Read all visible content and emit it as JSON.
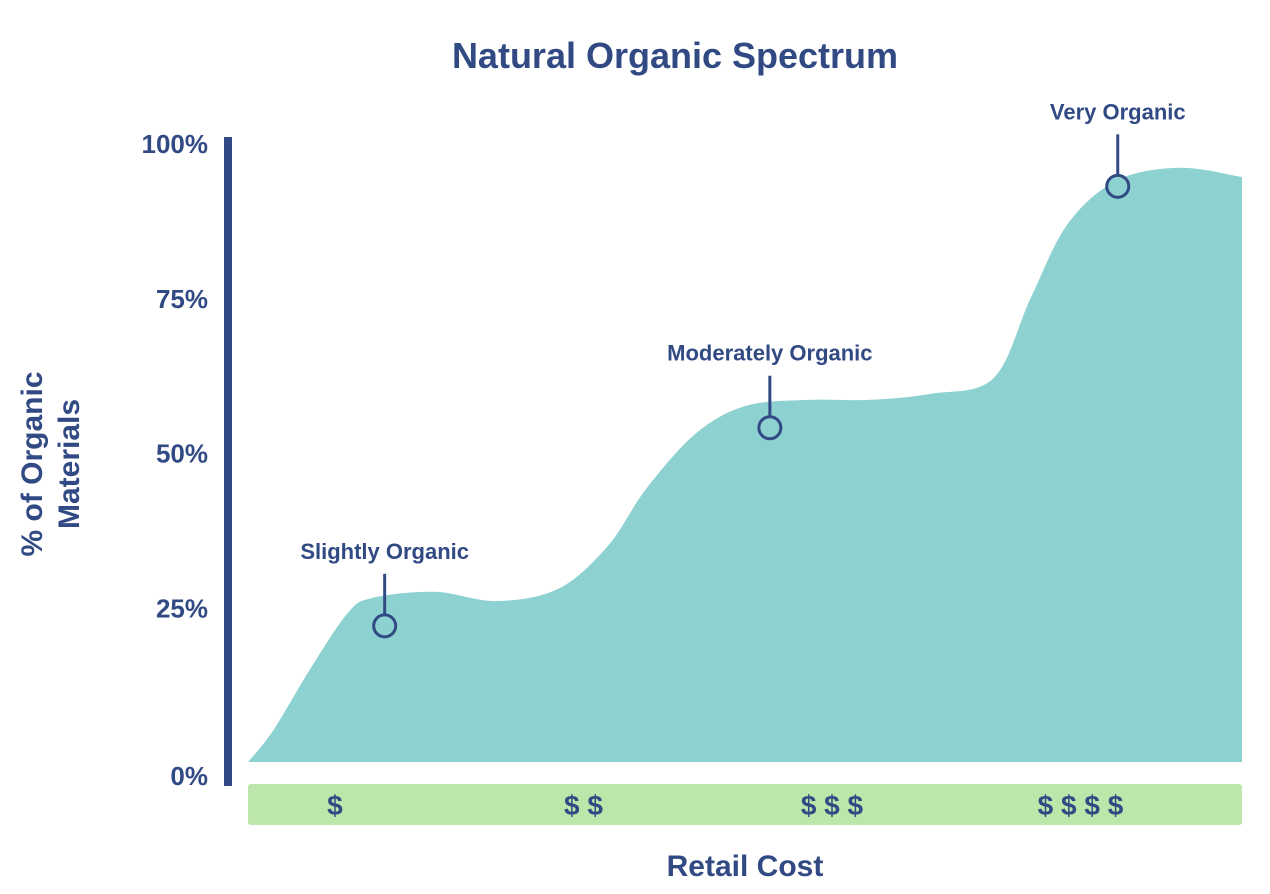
{
  "colors": {
    "text": "#324A84",
    "area": "#8DD2D1",
    "cost_band": "#BDE6AA",
    "axis": "#324A84",
    "marker_fill": "#8DD2D1"
  },
  "chart_data": {
    "type": "area",
    "title": "Natural Organic Spectrum",
    "xlabel": "Retail Cost",
    "ylabel_lines": [
      "% of Organic",
      "Materials"
    ],
    "y_ticks": [
      "0%",
      "25%",
      "50%",
      "75%",
      "100%"
    ],
    "ylim": [
      0,
      100
    ],
    "xlim": [
      0,
      4
    ],
    "x_categories": [
      "$",
      "$ $",
      "$ $ $",
      "$ $ $ $"
    ],
    "category_positions": [
      0.35,
      1.35,
      2.35,
      3.35
    ],
    "curve": {
      "x": [
        0,
        0.1,
        0.25,
        0.4,
        0.5,
        0.75,
        1.0,
        1.25,
        1.45,
        1.6,
        1.8,
        2.0,
        2.25,
        2.5,
        2.75,
        3.0,
        3.15,
        3.3,
        3.5,
        3.75,
        4.0
      ],
      "y": [
        0,
        5,
        15,
        24,
        26.5,
        27.5,
        26,
        28,
        35,
        44,
        53,
        57.5,
        58.5,
        58.5,
        59.5,
        62,
        75,
        87,
        94,
        96,
        94.5
      ]
    },
    "annotations": [
      {
        "label": "Slightly Organic",
        "x": 0.55,
        "y": 22
      },
      {
        "label": "Moderately Organic",
        "x": 2.1,
        "y": 54
      },
      {
        "label": "Very Organic",
        "x": 3.5,
        "y": 93
      }
    ],
    "legend": "none",
    "grid": false
  }
}
